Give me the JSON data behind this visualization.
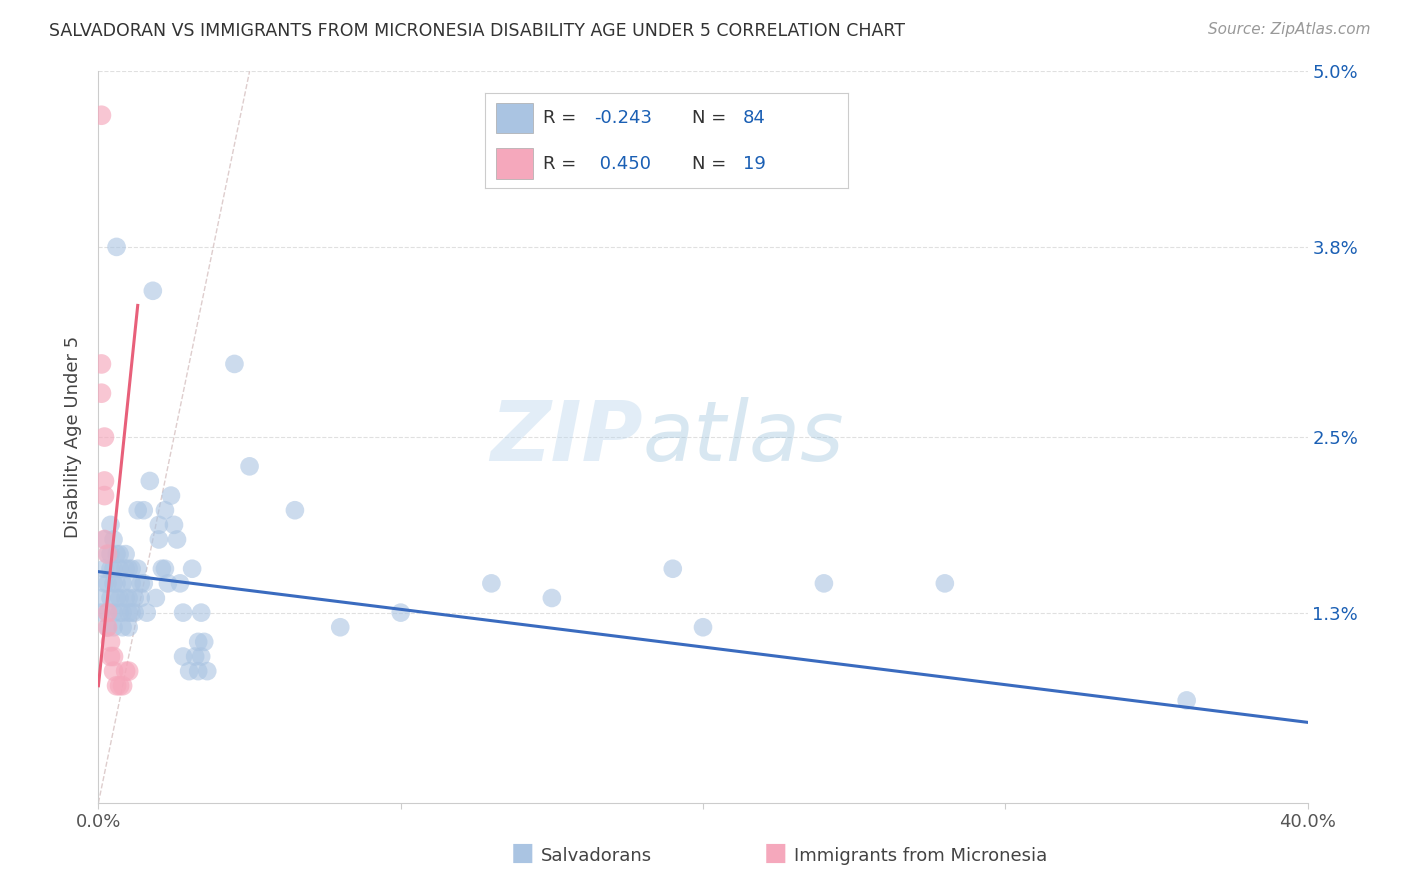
{
  "title": "SALVADORAN VS IMMIGRANTS FROM MICRONESIA DISABILITY AGE UNDER 5 CORRELATION CHART",
  "source": "Source: ZipAtlas.com",
  "ylabel": "Disability Age Under 5",
  "xlim": [
    0.0,
    0.4
  ],
  "ylim": [
    0.0,
    0.05
  ],
  "ytick_vals": [
    0.013,
    0.025,
    0.038,
    0.05
  ],
  "ytick_labels": [
    "1.3%",
    "2.5%",
    "3.8%",
    "5.0%"
  ],
  "xtick_vals": [
    0.0,
    0.1,
    0.2,
    0.3,
    0.4
  ],
  "xtick_labels": [
    "0.0%",
    "",
    "",
    "",
    "40.0%"
  ],
  "background_color": "#ffffff",
  "grid_color": "#dddddd",
  "salvadoran_color": "#aac4e2",
  "micronesia_color": "#f5a8bc",
  "salvadoran_line_color": "#3a6bbf",
  "micronesia_line_color": "#e8607a",
  "ref_line_color": "#d0b8b8",
  "salvadoran_R": -0.243,
  "salvadoran_N": 84,
  "micronesia_R": 0.45,
  "micronesia_N": 19,
  "legend_text_color": "#1a5fb4",
  "legend_label_color": "#333333",
  "watermark_color": "#cce0f0",
  "title_color": "#333333",
  "source_color": "#999999",
  "axis_color": "#cccccc",
  "sal_line_x": [
    0.0,
    0.4
  ],
  "sal_line_y": [
    0.0158,
    0.0055
  ],
  "mic_line_x": [
    0.0,
    0.013
  ],
  "mic_line_y": [
    0.008,
    0.034
  ],
  "ref_line_x": [
    0.0,
    0.05
  ],
  "ref_line_y": [
    0.0,
    0.05
  ],
  "salvadoran_points": [
    [
      0.001,
      0.013
    ],
    [
      0.001,
      0.014
    ],
    [
      0.002,
      0.016
    ],
    [
      0.002,
      0.018
    ],
    [
      0.002,
      0.015
    ],
    [
      0.003,
      0.015
    ],
    [
      0.003,
      0.013
    ],
    [
      0.003,
      0.012
    ],
    [
      0.003,
      0.017
    ],
    [
      0.004,
      0.019
    ],
    [
      0.004,
      0.017
    ],
    [
      0.004,
      0.014
    ],
    [
      0.004,
      0.016
    ],
    [
      0.005,
      0.018
    ],
    [
      0.005,
      0.016
    ],
    [
      0.005,
      0.013
    ],
    [
      0.005,
      0.012
    ],
    [
      0.005,
      0.015
    ],
    [
      0.006,
      0.038
    ],
    [
      0.006,
      0.015
    ],
    [
      0.006,
      0.014
    ],
    [
      0.006,
      0.017
    ],
    [
      0.007,
      0.017
    ],
    [
      0.007,
      0.014
    ],
    [
      0.007,
      0.013
    ],
    [
      0.007,
      0.016
    ],
    [
      0.008,
      0.015
    ],
    [
      0.008,
      0.013
    ],
    [
      0.008,
      0.012
    ],
    [
      0.009,
      0.017
    ],
    [
      0.009,
      0.016
    ],
    [
      0.009,
      0.014
    ],
    [
      0.01,
      0.014
    ],
    [
      0.01,
      0.013
    ],
    [
      0.01,
      0.012
    ],
    [
      0.01,
      0.016
    ],
    [
      0.011,
      0.016
    ],
    [
      0.011,
      0.015
    ],
    [
      0.011,
      0.013
    ],
    [
      0.012,
      0.014
    ],
    [
      0.012,
      0.013
    ],
    [
      0.013,
      0.02
    ],
    [
      0.013,
      0.016
    ],
    [
      0.014,
      0.015
    ],
    [
      0.014,
      0.014
    ],
    [
      0.015,
      0.02
    ],
    [
      0.015,
      0.015
    ],
    [
      0.016,
      0.013
    ],
    [
      0.017,
      0.022
    ],
    [
      0.018,
      0.035
    ],
    [
      0.019,
      0.014
    ],
    [
      0.02,
      0.019
    ],
    [
      0.02,
      0.018
    ],
    [
      0.021,
      0.016
    ],
    [
      0.022,
      0.02
    ],
    [
      0.022,
      0.016
    ],
    [
      0.023,
      0.015
    ],
    [
      0.024,
      0.021
    ],
    [
      0.025,
      0.019
    ],
    [
      0.026,
      0.018
    ],
    [
      0.027,
      0.015
    ],
    [
      0.028,
      0.013
    ],
    [
      0.028,
      0.01
    ],
    [
      0.03,
      0.009
    ],
    [
      0.031,
      0.016
    ],
    [
      0.032,
      0.01
    ],
    [
      0.033,
      0.011
    ],
    [
      0.033,
      0.009
    ],
    [
      0.034,
      0.013
    ],
    [
      0.034,
      0.01
    ],
    [
      0.035,
      0.011
    ],
    [
      0.036,
      0.009
    ],
    [
      0.045,
      0.03
    ],
    [
      0.05,
      0.023
    ],
    [
      0.065,
      0.02
    ],
    [
      0.08,
      0.012
    ],
    [
      0.1,
      0.013
    ],
    [
      0.13,
      0.015
    ],
    [
      0.15,
      0.014
    ],
    [
      0.19,
      0.016
    ],
    [
      0.2,
      0.012
    ],
    [
      0.24,
      0.015
    ],
    [
      0.28,
      0.015
    ],
    [
      0.36,
      0.007
    ]
  ],
  "micronesia_points": [
    [
      0.001,
      0.047
    ],
    [
      0.001,
      0.03
    ],
    [
      0.001,
      0.028
    ],
    [
      0.002,
      0.025
    ],
    [
      0.002,
      0.022
    ],
    [
      0.002,
      0.021
    ],
    [
      0.002,
      0.018
    ],
    [
      0.003,
      0.017
    ],
    [
      0.003,
      0.013
    ],
    [
      0.003,
      0.012
    ],
    [
      0.004,
      0.011
    ],
    [
      0.004,
      0.01
    ],
    [
      0.005,
      0.01
    ],
    [
      0.005,
      0.009
    ],
    [
      0.006,
      0.008
    ],
    [
      0.007,
      0.008
    ],
    [
      0.008,
      0.008
    ],
    [
      0.009,
      0.009
    ],
    [
      0.01,
      0.009
    ]
  ]
}
